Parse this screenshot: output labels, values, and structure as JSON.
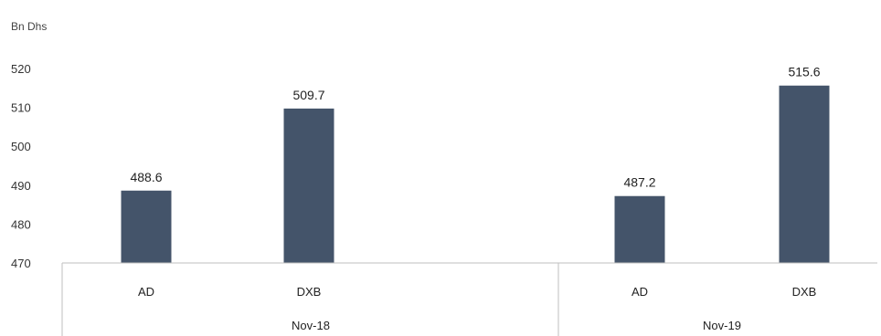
{
  "chart_data": {
    "type": "bar",
    "unit_label": "Bn Dhs",
    "categories": [
      "AD",
      "DXB",
      "AD",
      "DXB"
    ],
    "groups": [
      {
        "label": "Nov-18",
        "categories": [
          "AD",
          "DXB"
        ]
      },
      {
        "label": "Nov-19",
        "categories": [
          "AD",
          "DXB"
        ]
      }
    ],
    "values": [
      488.6,
      509.7,
      487.2,
      515.6
    ],
    "value_labels": [
      "488.6",
      "509.7",
      "487.2",
      "515.6"
    ],
    "ylim": [
      470,
      520
    ],
    "yticks": [
      "470",
      "480",
      "490",
      "500",
      "510",
      "520"
    ],
    "bar_color": "#44546a",
    "grid": false,
    "legend": "none"
  }
}
